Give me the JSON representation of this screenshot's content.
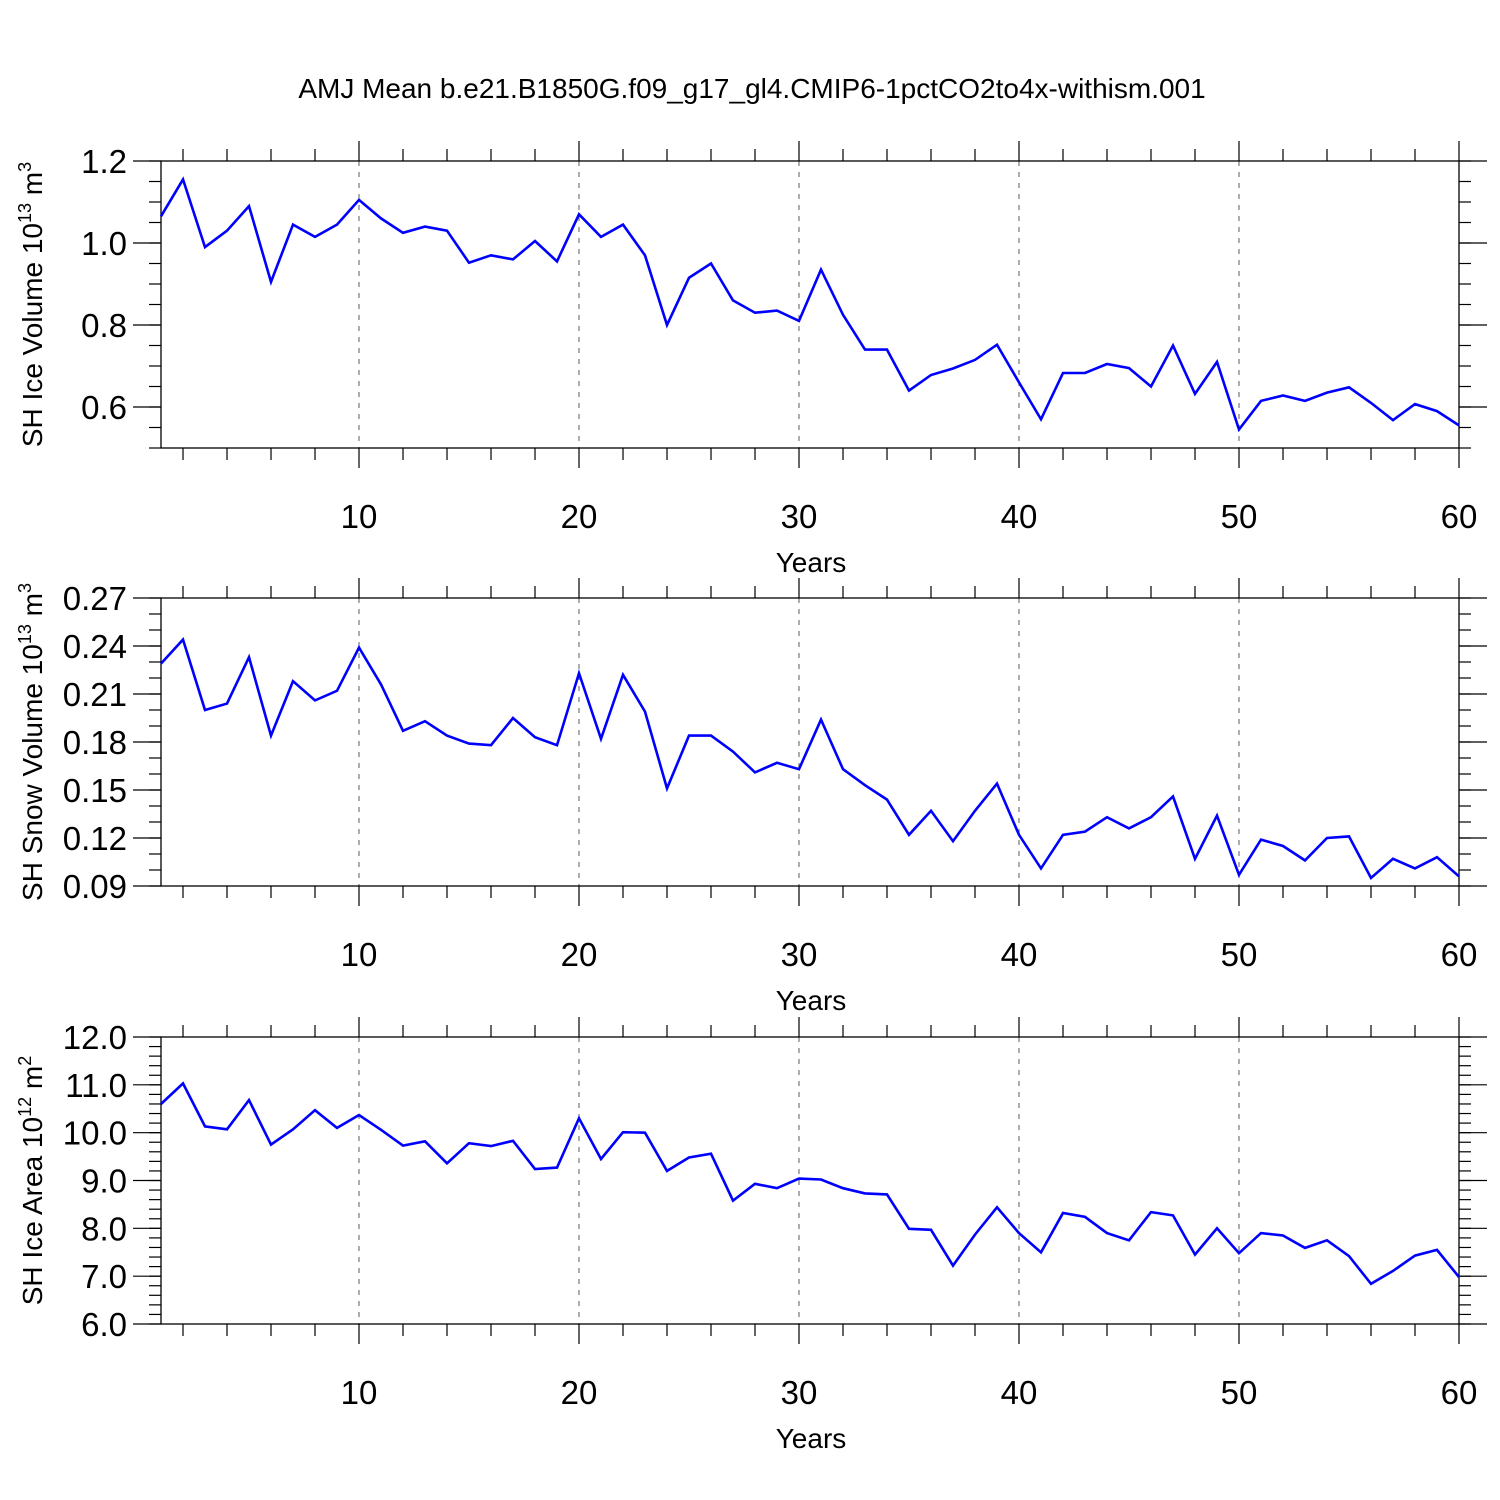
{
  "title": "AMJ Mean b.e21.B1850G.f09_g17_gl4.CMIP6-1pctCO2to4x-withism.001",
  "colors": {
    "line": "#0000ff",
    "axis": "#000000",
    "grid": "#777777",
    "background": "#ffffff"
  },
  "chart_data": [
    {
      "type": "line",
      "ylabel": "SH Ice Volume",
      "ylabel_unit_base": "10",
      "ylabel_unit_exp": "13",
      "ylabel_unit_tail": "m",
      "ylabel_unit_tail_exp": "3",
      "xlabel": "Years",
      "xlim": [
        1,
        60
      ],
      "ylim": [
        0.5,
        1.2
      ],
      "yticks": [
        0.6,
        0.8,
        1.0,
        1.2
      ],
      "ytick_labels": [
        "0.6",
        "0.8",
        "1.0",
        "1.2"
      ],
      "ytick_minor_step": 0.05,
      "xticks": [
        10,
        20,
        30,
        40,
        50,
        60
      ],
      "xtick_labels": [
        "10",
        "20",
        "30",
        "40",
        "50",
        "60"
      ],
      "grid_x": [
        10,
        20,
        30,
        40,
        50
      ],
      "series": [
        {
          "name": "SH Ice Volume",
          "x": [
            1,
            2,
            3,
            4,
            5,
            6,
            7,
            8,
            9,
            10,
            11,
            12,
            13,
            14,
            15,
            16,
            17,
            18,
            19,
            20,
            21,
            22,
            23,
            24,
            25,
            26,
            27,
            28,
            29,
            30,
            31,
            32,
            33,
            34,
            35,
            36,
            37,
            38,
            39,
            40,
            41,
            42,
            43,
            44,
            45,
            46,
            47,
            48,
            49,
            50,
            51,
            52,
            53,
            54,
            55,
            56,
            57,
            58,
            59,
            60
          ],
          "values": [
            1.065,
            1.155,
            0.99,
            1.03,
            1.09,
            0.905,
            1.045,
            1.015,
            1.045,
            1.105,
            1.06,
            1.025,
            1.04,
            1.03,
            0.952,
            0.97,
            0.96,
            1.005,
            0.955,
            1.07,
            1.015,
            1.045,
            0.97,
            0.8,
            0.915,
            0.95,
            0.86,
            0.83,
            0.835,
            0.81,
            0.935,
            0.825,
            0.74,
            0.74,
            0.64,
            0.678,
            0.694,
            0.715,
            0.752,
            0.66,
            0.57,
            0.683,
            0.683,
            0.705,
            0.695,
            0.65,
            0.75,
            0.632,
            0.71,
            0.545,
            0.615,
            0.628,
            0.615,
            0.635,
            0.648,
            0.61,
            0.568,
            0.607,
            0.59,
            0.555
          ]
        }
      ]
    },
    {
      "type": "line",
      "ylabel": "SH Snow Volume",
      "ylabel_unit_base": "10",
      "ylabel_unit_exp": "13",
      "ylabel_unit_tail": "m",
      "ylabel_unit_tail_exp": "3",
      "xlabel": "Years",
      "xlim": [
        1,
        60
      ],
      "ylim": [
        0.09,
        0.27
      ],
      "yticks": [
        0.09,
        0.12,
        0.15,
        0.18,
        0.21,
        0.24,
        0.27
      ],
      "ytick_labels": [
        "0.09",
        "0.12",
        "0.15",
        "0.18",
        "0.21",
        "0.24",
        "0.27"
      ],
      "ytick_minor_step": 0.01,
      "xticks": [
        10,
        20,
        30,
        40,
        50,
        60
      ],
      "xtick_labels": [
        "10",
        "20",
        "30",
        "40",
        "50",
        "60"
      ],
      "grid_x": [
        10,
        20,
        30,
        40,
        50
      ],
      "series": [
        {
          "name": "SH Snow Volume",
          "x": [
            1,
            2,
            3,
            4,
            5,
            6,
            7,
            8,
            9,
            10,
            11,
            12,
            13,
            14,
            15,
            16,
            17,
            18,
            19,
            20,
            21,
            22,
            23,
            24,
            25,
            26,
            27,
            28,
            29,
            30,
            31,
            32,
            33,
            34,
            35,
            36,
            37,
            38,
            39,
            40,
            41,
            42,
            43,
            44,
            45,
            46,
            47,
            48,
            49,
            50,
            51,
            52,
            53,
            54,
            55,
            56,
            57,
            58,
            59,
            60
          ],
          "values": [
            0.229,
            0.244,
            0.2,
            0.204,
            0.233,
            0.184,
            0.218,
            0.206,
            0.212,
            0.239,
            0.216,
            0.187,
            0.193,
            0.184,
            0.179,
            0.178,
            0.195,
            0.183,
            0.178,
            0.223,
            0.182,
            0.222,
            0.199,
            0.151,
            0.184,
            0.184,
            0.174,
            0.161,
            0.167,
            0.163,
            0.194,
            0.163,
            0.153,
            0.144,
            0.122,
            0.137,
            0.118,
            0.137,
            0.154,
            0.122,
            0.101,
            0.122,
            0.124,
            0.133,
            0.126,
            0.133,
            0.146,
            0.107,
            0.134,
            0.097,
            0.119,
            0.115,
            0.106,
            0.12,
            0.121,
            0.095,
            0.107,
            0.101,
            0.108,
            0.096
          ]
        }
      ]
    },
    {
      "type": "line",
      "ylabel": "SH Ice Area",
      "ylabel_unit_base": "10",
      "ylabel_unit_exp": "12",
      "ylabel_unit_tail": "m",
      "ylabel_unit_tail_exp": "2",
      "xlabel": "Years",
      "xlim": [
        1,
        60
      ],
      "ylim": [
        6.0,
        12.0
      ],
      "yticks": [
        6.0,
        7.0,
        8.0,
        9.0,
        10.0,
        11.0,
        12.0
      ],
      "ytick_labels": [
        "6.0",
        "7.0",
        "8.0",
        "9.0",
        "10.0",
        "11.0",
        "12.0"
      ],
      "ytick_minor_step": 0.2,
      "xticks": [
        10,
        20,
        30,
        40,
        50,
        60
      ],
      "xtick_labels": [
        "10",
        "20",
        "30",
        "40",
        "50",
        "60"
      ],
      "grid_x": [
        10,
        20,
        30,
        40,
        50
      ],
      "series": [
        {
          "name": "SH Ice Area",
          "x": [
            1,
            2,
            3,
            4,
            5,
            6,
            7,
            8,
            9,
            10,
            11,
            12,
            13,
            14,
            15,
            16,
            17,
            18,
            19,
            20,
            21,
            22,
            23,
            24,
            25,
            26,
            27,
            28,
            29,
            30,
            31,
            32,
            33,
            34,
            35,
            36,
            37,
            38,
            39,
            40,
            41,
            42,
            43,
            44,
            45,
            46,
            47,
            48,
            49,
            50,
            51,
            52,
            53,
            54,
            55,
            56,
            57,
            58,
            59,
            60
          ],
          "values": [
            10.6,
            11.03,
            10.13,
            10.07,
            10.68,
            9.75,
            10.07,
            10.47,
            10.1,
            10.37,
            10.06,
            9.73,
            9.82,
            9.36,
            9.78,
            9.72,
            9.83,
            9.24,
            9.27,
            10.3,
            9.45,
            10.01,
            10.0,
            9.2,
            9.48,
            9.56,
            8.58,
            8.93,
            8.84,
            9.04,
            9.02,
            8.84,
            8.73,
            8.71,
            7.99,
            7.97,
            7.22,
            7.87,
            8.44,
            7.9,
            7.5,
            8.32,
            8.24,
            7.9,
            7.75,
            8.34,
            8.27,
            7.45,
            8.0,
            7.48,
            7.9,
            7.85,
            7.59,
            7.75,
            7.42,
            6.84,
            7.11,
            7.43,
            7.55,
            6.98
          ]
        }
      ]
    }
  ]
}
